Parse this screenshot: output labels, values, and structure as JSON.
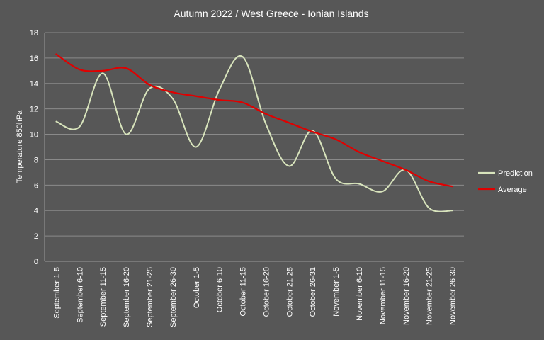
{
  "chart_data": {
    "type": "line",
    "title": "Autumn  2022 / West Greece - Ionian Islands",
    "ylabel": "Temperature 850hPa",
    "xlabel": "",
    "ylim": [
      0,
      18
    ],
    "yticks": [
      0,
      2,
      4,
      6,
      8,
      10,
      12,
      14,
      16,
      18
    ],
    "grid": true,
    "legend_position": "right",
    "categories": [
      "September 1-5",
      "September 6-10",
      "September 11-15",
      "September 16-20",
      "September 21-25",
      "September 26-30",
      "October 1-5",
      "October 6-10",
      "October 11-15",
      "October 16-20",
      "October 21-25",
      "October 26-31",
      "November 1-5",
      "November 6-10",
      "November 11-15",
      "November 16-20",
      "November 21-25",
      "November 26-30"
    ],
    "series": [
      {
        "name": "Prediction",
        "color": "#d8e4bc",
        "values": [
          11.0,
          10.6,
          14.8,
          10.0,
          13.6,
          12.8,
          9.0,
          13.5,
          16.1,
          10.8,
          7.5,
          10.3,
          6.5,
          6.1,
          5.5,
          7.2,
          4.2,
          4.0
        ]
      },
      {
        "name": "Average",
        "color": "#e00000",
        "values": [
          16.3,
          15.1,
          15.0,
          15.2,
          13.9,
          13.3,
          13.0,
          12.7,
          12.5,
          11.6,
          10.9,
          10.2,
          9.6,
          8.6,
          7.9,
          7.2,
          6.3,
          5.9
        ]
      }
    ]
  }
}
